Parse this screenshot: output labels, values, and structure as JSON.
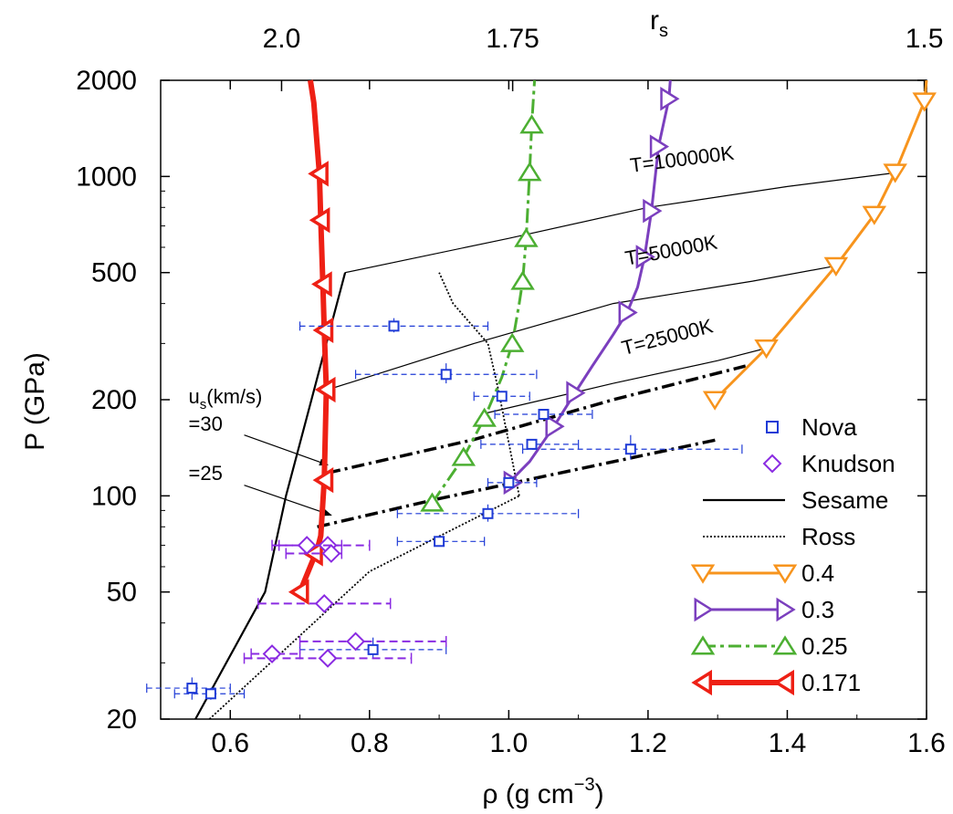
{
  "chart_data": {
    "type": "line",
    "title": "",
    "xlabel": "ρ (g cm",
    "xlabel_sup": "−3",
    "xlabel_close": ")",
    "ylabel": "P (GPa)",
    "top_axis_label": "r",
    "top_axis_label_sub": "s",
    "xlim": [
      0.5,
      1.6
    ],
    "ylim": [
      20,
      2000
    ],
    "y_scale": "log",
    "x_ticks": [
      "0.6",
      "0.8",
      "1.0",
      "1.2",
      "1.4",
      "1.6"
    ],
    "y_ticks": [
      "20",
      "50",
      "100",
      "200",
      "500",
      "1000",
      "2000"
    ],
    "top_ticks": [
      {
        "label": "2.0",
        "rs": 2.0
      },
      {
        "label": "1.75",
        "rs": 1.75
      },
      {
        "label": "1.5",
        "rs": 1.5
      }
    ],
    "legend_position": "bottom-right",
    "legend_entries": [
      "Nova",
      "Knudson",
      "Sesame",
      "Ross",
      "0.4",
      "0.3",
      "0.25",
      "0.171"
    ],
    "curves": [
      {
        "name": "0.4",
        "color": "#f7941d",
        "marker": "triangle-down",
        "width": 3,
        "points": [
          [
            1.296,
            200
          ],
          [
            1.37,
            290
          ],
          [
            1.47,
            525
          ],
          [
            1.525,
            760
          ],
          [
            1.555,
            1030
          ],
          [
            1.597,
            1720
          ],
          [
            1.6,
            2000
          ]
        ],
        "marker_points": [
          [
            1.296,
            200
          ],
          [
            1.37,
            290
          ],
          [
            1.47,
            525
          ],
          [
            1.525,
            760
          ],
          [
            1.555,
            1030
          ],
          [
            1.597,
            1720
          ]
        ]
      },
      {
        "name": "0.3",
        "color": "#7b3fbe",
        "marker": "triangle-right",
        "width": 3,
        "points": [
          [
            1.0,
            110
          ],
          [
            1.03,
            128
          ],
          [
            1.065,
            165
          ],
          [
            1.095,
            210
          ],
          [
            1.12,
            255
          ],
          [
            1.15,
            320
          ],
          [
            1.17,
            375
          ],
          [
            1.185,
            450
          ],
          [
            1.195,
            560
          ],
          [
            1.205,
            780
          ],
          [
            1.215,
            1240
          ],
          [
            1.23,
            1750
          ],
          [
            1.232,
            2000
          ]
        ],
        "marker_points": [
          [
            1.005,
            110
          ],
          [
            1.065,
            165
          ],
          [
            1.095,
            210
          ],
          [
            1.17,
            375
          ],
          [
            1.195,
            560
          ],
          [
            1.205,
            780
          ],
          [
            1.215,
            1240
          ],
          [
            1.23,
            1750
          ]
        ]
      },
      {
        "name": "0.25",
        "color": "#4caf32",
        "marker": "triangle-up",
        "width": 3,
        "points": [
          [
            0.89,
            95
          ],
          [
            0.935,
            132
          ],
          [
            0.965,
            175
          ],
          [
            0.99,
            235
          ],
          [
            1.005,
            300
          ],
          [
            1.015,
            400
          ],
          [
            1.02,
            470
          ],
          [
            1.025,
            640
          ],
          [
            1.03,
            1030
          ],
          [
            1.033,
            1450
          ],
          [
            1.037,
            2000
          ]
        ],
        "marker_points": [
          [
            0.89,
            95
          ],
          [
            0.935,
            132
          ],
          [
            0.965,
            175
          ],
          [
            1.005,
            300
          ],
          [
            1.02,
            470
          ],
          [
            1.025,
            640
          ],
          [
            1.03,
            1030
          ],
          [
            1.033,
            1450
          ]
        ]
      },
      {
        "name": "0.171",
        "color": "#ee2015",
        "marker": "triangle-left",
        "width": 6,
        "points": [
          [
            0.7,
            50
          ],
          [
            0.72,
            64
          ],
          [
            0.725,
            68
          ],
          [
            0.73,
            75
          ],
          [
            0.735,
            112
          ],
          [
            0.738,
            215
          ],
          [
            0.735,
            330
          ],
          [
            0.733,
            460
          ],
          [
            0.73,
            730
          ],
          [
            0.728,
            1020
          ],
          [
            0.72,
            1700
          ],
          [
            0.715,
            2000
          ]
        ],
        "marker_points": [
          [
            0.7,
            50
          ],
          [
            0.72,
            66
          ],
          [
            0.735,
            112
          ],
          [
            0.738,
            215
          ],
          [
            0.735,
            330
          ],
          [
            0.733,
            460
          ],
          [
            0.73,
            730
          ],
          [
            0.728,
            1020
          ]
        ]
      }
    ],
    "sesame": {
      "color": "#000000",
      "hugoniot": [
        [
          0.55,
          20
        ],
        [
          0.65,
          50
        ],
        [
          0.68,
          100
        ],
        [
          0.765,
          500
        ]
      ],
      "isotherms": [
        {
          "label": "T=100000K",
          "label_at": [
            1.25,
            1080
          ],
          "points": [
            [
              0.765,
              500
            ],
            [
              1.0,
              640
            ],
            [
              1.2,
              800
            ],
            [
              1.4,
              930
            ],
            [
              1.56,
              1030
            ]
          ]
        },
        {
          "label": "T=50000K",
          "label_at": [
            1.235,
            560
          ],
          "points": [
            [
              0.74,
              215
            ],
            [
              0.95,
              300
            ],
            [
              1.15,
              400
            ],
            [
              1.35,
              470
            ],
            [
              1.47,
              525
            ]
          ]
        },
        {
          "label": "T=25000K",
          "label_at": [
            1.23,
            300
          ],
          "points": [
            [
              0.96,
              180
            ],
            [
              1.15,
              225
            ],
            [
              1.3,
              265
            ],
            [
              1.37,
              290
            ]
          ]
        }
      ]
    },
    "ross": {
      "color": "#000000",
      "lower": [
        [
          0.57,
          20
        ],
        [
          0.8,
          58
        ],
        [
          1.015,
          100
        ]
      ],
      "upper": [
        [
          1.015,
          100
        ],
        [
          0.985,
          215
        ],
        [
          0.97,
          300
        ],
        [
          0.92,
          400
        ],
        [
          0.9,
          500
        ]
      ]
    },
    "velocity_lines": {
      "label_title": "u",
      "label_title_sub": "s",
      "label_title_unit": "(km/s)",
      "entries": [
        {
          "label": "=30",
          "label_at": [
            0.54,
            160
          ],
          "arrow_from": [
            0.62,
            155
          ],
          "arrow_to": [
            0.74,
            125
          ],
          "points": [
            [
              0.74,
              118
            ],
            [
              0.95,
              150
            ],
            [
              1.15,
              200
            ],
            [
              1.34,
              255
            ]
          ]
        },
        {
          "label": "=25",
          "label_at": [
            0.54,
            112
          ],
          "arrow_from": [
            0.62,
            108
          ],
          "arrow_to": [
            0.745,
            87
          ],
          "points": [
            [
              0.725,
              80
            ],
            [
              0.9,
              98
            ],
            [
              1.05,
              115
            ],
            [
              1.3,
              150
            ]
          ]
        }
      ]
    },
    "nova": {
      "color": "#1f3bd6",
      "points": [
        {
          "x": 0.545,
          "y": 25,
          "xerr": [
            0.48,
            0.6
          ],
          "yerr": [
            23,
            27
          ]
        },
        {
          "x": 0.572,
          "y": 24,
          "xerr": [
            0.52,
            0.62
          ],
          "yerr": [
            23,
            25
          ]
        },
        {
          "x": 0.805,
          "y": 33,
          "xerr": [
            0.7,
            0.91
          ],
          "yerr": [
            31,
            36
          ]
        },
        {
          "x": 0.9,
          "y": 72,
          "xerr": [
            0.84,
            0.965
          ],
          "yerr": [
            70,
            74
          ]
        },
        {
          "x": 0.97,
          "y": 88,
          "xerr": [
            0.84,
            1.1
          ],
          "yerr": [
            83,
            94
          ]
        },
        {
          "x": 1.0,
          "y": 110,
          "xerr": [
            0.97,
            1.04
          ],
          "yerr": [
            106,
            114
          ]
        },
        {
          "x": 1.033,
          "y": 145,
          "xerr": [
            0.96,
            1.1
          ],
          "yerr": [
            140,
            150
          ]
        },
        {
          "x": 1.175,
          "y": 140,
          "xerr": [
            1.02,
            1.335
          ],
          "yerr": [
            130,
            155
          ]
        },
        {
          "x": 1.05,
          "y": 180,
          "xerr": [
            0.98,
            1.12
          ],
          "yerr": [
            175,
            185
          ]
        },
        {
          "x": 0.99,
          "y": 205,
          "xerr": [
            0.95,
            1.03
          ],
          "yerr": [
            200,
            210
          ]
        },
        {
          "x": 0.91,
          "y": 240,
          "xerr": [
            0.78,
            1.04
          ],
          "yerr": [
            225,
            260
          ]
        },
        {
          "x": 0.835,
          "y": 340,
          "xerr": [
            0.7,
            0.97
          ],
          "yerr": [
            325,
            360
          ]
        }
      ]
    },
    "knudson": {
      "color": "#8a2be2",
      "points": [
        {
          "x": 0.74,
          "y": 70,
          "xerr": [
            0.67,
            0.8
          ]
        },
        {
          "x": 0.745,
          "y": 66,
          "xerr": [
            0.68,
            0.76
          ]
        },
        {
          "x": 0.71,
          "y": 70,
          "xerr": [
            0.66,
            0.76
          ]
        },
        {
          "x": 0.735,
          "y": 46,
          "xerr": [
            0.64,
            0.83
          ]
        },
        {
          "x": 0.78,
          "y": 35,
          "xerr": [
            0.7,
            0.91
          ]
        },
        {
          "x": 0.66,
          "y": 32,
          "xerr": [
            0.63,
            0.7
          ]
        },
        {
          "x": 0.74,
          "y": 31,
          "xerr": [
            0.62,
            0.86
          ]
        }
      ]
    }
  }
}
